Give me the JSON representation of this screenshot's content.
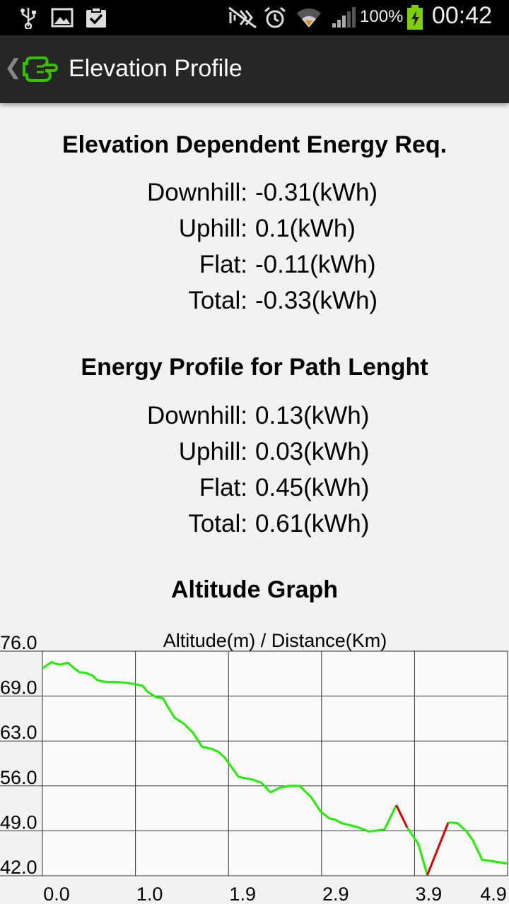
{
  "status_bar": {
    "time": "00:42",
    "battery_percent": "100%",
    "icons": [
      "usb-icon",
      "image-icon",
      "clipboard-check-icon",
      "mute-icon",
      "alarm-icon",
      "wifi-icon",
      "signal-icon",
      "battery-charging-icon"
    ]
  },
  "action_bar": {
    "title": "Elevation Profile",
    "logo_icon": "app-plug-logo-icon",
    "accent_color": "#39c000"
  },
  "elevation_energy": {
    "title": "Elevation Dependent Energy Req.",
    "rows": [
      {
        "label": "Downhill:",
        "value": "-0.31(kWh)"
      },
      {
        "label": "Uphill:",
        "value": "0.1(kWh)"
      },
      {
        "label": "Flat:",
        "value": "-0.11(kWh)"
      },
      {
        "label": "Total:",
        "value": "-0.33(kWh)"
      }
    ]
  },
  "path_energy": {
    "title": "Energy Profile for Path Lenght",
    "rows": [
      {
        "label": "Downhill:",
        "value": "0.13(kWh)"
      },
      {
        "label": "Uphill:",
        "value": "0.03(kWh)"
      },
      {
        "label": "Flat:",
        "value": "0.45(kWh)"
      },
      {
        "label": "Total:",
        "value": "0.61(kWh)"
      }
    ]
  },
  "altitude_section": {
    "title": "Altitude Graph"
  },
  "chart_data": {
    "type": "line",
    "title": "Altitude(m) / Distance(Km)",
    "xlabel": "",
    "ylabel": "",
    "x_tick_labels": [
      "0.0",
      "1.0",
      "1.9",
      "2.9",
      "3.9",
      "4.9"
    ],
    "y_tick_labels": [
      "76.0",
      "69.0",
      "63.0",
      "56.0",
      "49.0",
      "42.0"
    ],
    "xlim": [
      -0.1,
      5.0
    ],
    "ylim": [
      42.0,
      77.0
    ],
    "grid": true,
    "colors": {
      "normal": "#22ee00",
      "steep": "#dd0000"
    },
    "series": [
      {
        "x": [
          -0.1,
          0.0,
          0.05,
          0.1,
          0.18,
          0.25,
          0.31,
          0.38,
          0.45,
          0.5,
          0.55,
          0.62,
          0.7,
          0.8,
          0.9,
          1.0,
          1.05,
          1.15,
          1.22,
          1.28,
          1.35,
          1.45,
          1.55,
          1.65,
          1.75,
          1.83,
          1.9,
          2.05,
          2.2,
          2.3,
          2.4,
          2.5,
          2.6,
          2.72,
          2.85,
          2.95,
          3.05,
          3.1,
          3.18,
          3.35,
          3.48,
          3.65,
          3.78,
          3.9,
          4.02,
          4.12,
          4.35,
          4.45,
          4.55,
          4.62,
          4.72,
          4.82,
          5.0
        ],
        "y": [
          74.3,
          75.3,
          75.0,
          74.9,
          75.2,
          74.3,
          73.7,
          73.6,
          73.2,
          72.5,
          72.3,
          72.2,
          72.2,
          72.1,
          71.9,
          71.6,
          70.7,
          69.8,
          69.7,
          68.2,
          66.6,
          65.7,
          64.3,
          62.1,
          61.8,
          61.3,
          60.4,
          57.4,
          57.0,
          56.5,
          55.0,
          55.7,
          56.0,
          56.0,
          54.2,
          52.0,
          50.9,
          50.8,
          50.2,
          49.6,
          48.9,
          49.2,
          53.0,
          49.5,
          47.0,
          42.1,
          50.3,
          50.2,
          48.9,
          47.5,
          44.5,
          44.3,
          43.9
        ],
        "steep_segments": [
          [
            42,
            43
          ],
          [
            45,
            46
          ]
        ]
      }
    ]
  }
}
